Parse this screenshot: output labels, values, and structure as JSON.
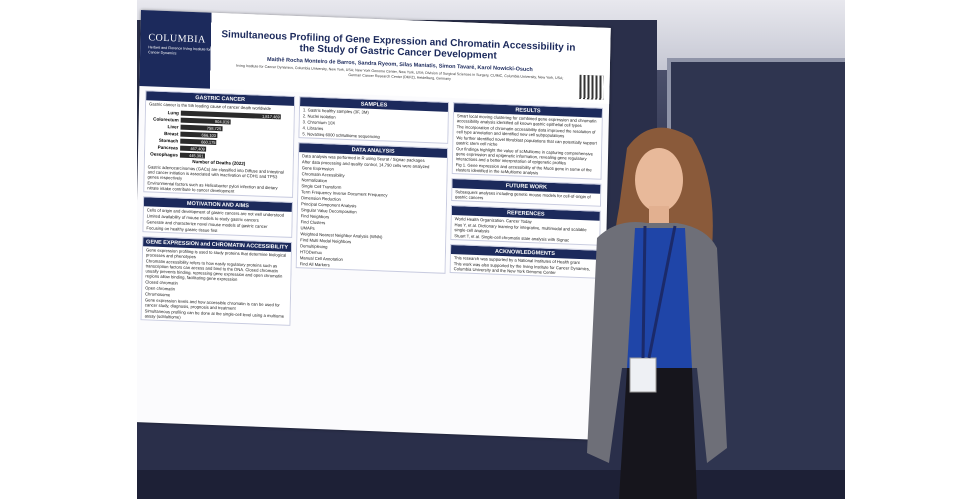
{
  "poster": {
    "logo": "COLUMBIA",
    "logo_sub": "Herbert and Florence Irving Institute for Cancer Dynamics",
    "title": "Simultaneous Profiling of Gene Expression and Chromatin Accessibility in the Study of Gastric Cancer Development",
    "authors": "Maithê Rocha Monteiro de Barros, Sandra Ryeom, Silas Maniatis, Simon Tavaré, Karol Nowicki-Osuch",
    "affiliations": "Irving Institute for Cancer Dynamics, Columbia University, New York, USA; New York Genome Center, New York, USA; Division of Surgical Sciences in Surgery, CUIMC, Columbia University, New York, USA; German Cancer Research Center (DKFZ), Heidelberg, Germany",
    "columns": [
      {
        "sections": [
          {
            "heading": "GASTRIC CANCER",
            "items": [
              "Gastric cancer is the 5th leading cause of cancer death worldwide"
            ],
            "chart": {
              "type": "bar",
              "categories": [
                "Lung",
                "Colorectum",
                "Liver",
                "Breast",
                "Stomach",
                "Pancreas",
                "Oesophagus"
              ],
              "values": [
                1817469,
                904019,
                758725,
                666103,
                660175,
                467409,
                445391
              ],
              "value_labels": [
                "1,817,469",
                "904,019",
                "758,725",
                "666,103",
                "660,175",
                "467,409",
                "445,391"
              ],
              "color": "#2b2b2b",
              "xlabel": "Number of Deaths (2022)"
            },
            "after": [
              "Gastric adenocarcinomas (GACs) are classified into Diffuse and Intestinal and cancer initiation is associated with inactivation of CDH1 and TP53 genes respectively",
              "Environmental factors such as Helicobacter pylori infection and dietary nitrate intake contribute to cancer development"
            ]
          },
          {
            "heading": "MOTIVATION AND AIMS",
            "items": [
              "Cells of origin and development of gastric cancers are not well understood",
              "Limited availability of mouse models to study gastric cancers",
              "Generate and characterize novel mouse models of gastric cancer",
              "Focusing on healthy gastric tissue first"
            ]
          },
          {
            "heading": "GENE EXPRESSION and CHROMATIN ACCESSIBILITY",
            "items": [
              "Gene expression profiling is used to study proteins that determine biological processes and phenotypes",
              "Chromatin accessibility refers to how easily regulatory proteins such as transcription factors can access and bind to the DNA. Closed chromatin usually prevents binding, repressing gene expression and open chromatin regions allow binding, facilitating gene expression",
              "Closed chromatin",
              "Open chromatin",
              "Chromosome",
              "Gene expression levels and how accessible chromatin is can be used for cancer study, diagnosis, prognosis and treatment",
              "Simultaneous profiling can be done at the single-cell level using a multiome assay (scMultiome)"
            ]
          }
        ]
      },
      {
        "sections": [
          {
            "heading": "SAMPLES",
            "items": [
              "1. Gastric healthy samples (3F, 3M)",
              "2. Nuclei isolation",
              "3. Chromium 10X",
              "4. Libraries",
              "5. NovaSeq 6000 scMultiome sequencing"
            ]
          },
          {
            "heading": "DATA ANALYSIS",
            "items": [
              "Data analysis was performed in R using Seurat / Signac packages",
              "After data processing and quality control, 14,790 cells were analyzed",
              "Gene Expression",
              "Chromatin Accessibility",
              "Normalization",
              "Single Cell Transform",
              "Term Frequency Inverse Document Frequency",
              "Dimension Reduction",
              "Principal Component Analysis",
              "Singular Value Decomposition",
              "Find Neighbors",
              "Find Clusters",
              "UMAPs",
              "Weighted Nearest Neighbor Analysis (WNN)",
              "Find Multi Modal Neighbors",
              "Demultiplexing",
              "HTODemux",
              "Manual Cell Annotation",
              "Find All Markers"
            ]
          }
        ]
      },
      {
        "sections": [
          {
            "heading": "RESULTS",
            "items": [
              "Smart local moving clustering for combined gene expression and chromatin accessibility analysis identified all known gastric epithelial cell types",
              "The incorporation of chromatin accessibility data improved the resolution of cell type annotation and identified new cell subpopulations",
              "We further identified novel fibroblast populations that can potentially support gastric stem cell niche",
              "Our findings highlight the value of scMultiome in capturing comprehensive gene expression and epigenetic information, revealing gene regulatory interactions and a better interpretation of epigenetic profiles",
              "Fig 1. Gene expression and accessibility of the Muc6 gene in some of the clusters identified in the scMultiome analysis"
            ]
          },
          {
            "heading": "FUTURE WORK",
            "items": [
              "Subsequent analyses including genetic mouse models for cell-of-origin of gastric cancers"
            ]
          },
          {
            "heading": "REFERENCES",
            "items": [
              "World Health Organization. Cancer Today",
              "Hao Y, et al. Dictionary learning for integrative, multimodal and scalable single-cell analysis",
              "Stuart T, et al. Single-cell chromatin state analysis with Signac"
            ]
          },
          {
            "heading": "ACKNOWLEDGMENTS",
            "items": [
              "This research was supported by a National Institutes of Health grant",
              "This work was also supported by the Irving Institute for Cancer Dynamics, Columbia University and the New York Genome Center"
            ]
          }
        ]
      }
    ]
  }
}
